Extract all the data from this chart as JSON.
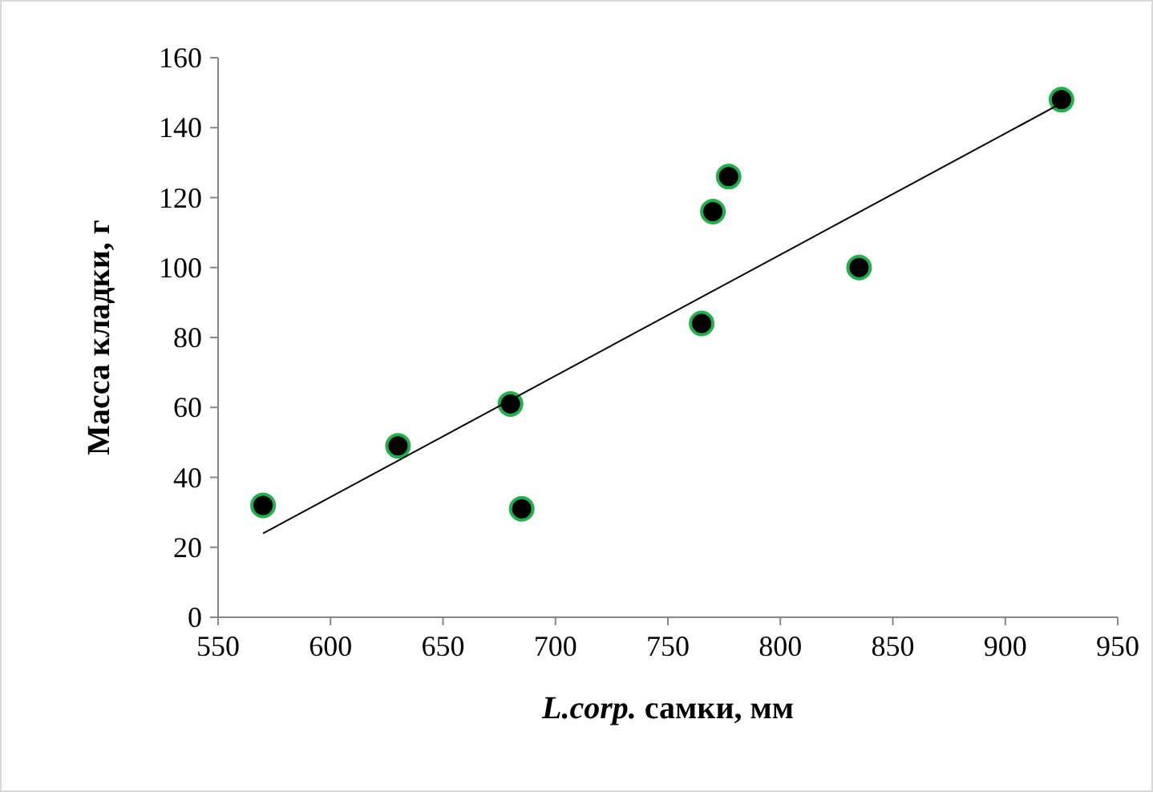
{
  "chart_data": {
    "type": "scatter",
    "xlabel": "L.corp. самки, мм",
    "ylabel": "Масса кладки, г",
    "xlim": [
      550,
      950
    ],
    "xticks": [
      550,
      600,
      650,
      700,
      750,
      800,
      850,
      900,
      950
    ],
    "ylim": [
      0,
      160
    ],
    "yticks": [
      0,
      20,
      40,
      60,
      80,
      100,
      120,
      140,
      160
    ],
    "grid": false,
    "series": [
      {
        "marker": "circle",
        "color": "#000000",
        "x": [
          570,
          630,
          680,
          685,
          765,
          770,
          777,
          835,
          925
        ],
        "values": [
          32,
          49,
          61,
          31,
          84,
          116,
          126,
          100,
          148
        ]
      },
      {
        "type": "line",
        "color": "#000000",
        "x": [
          570,
          925
        ],
        "values": [
          24,
          147
        ]
      }
    ]
  }
}
